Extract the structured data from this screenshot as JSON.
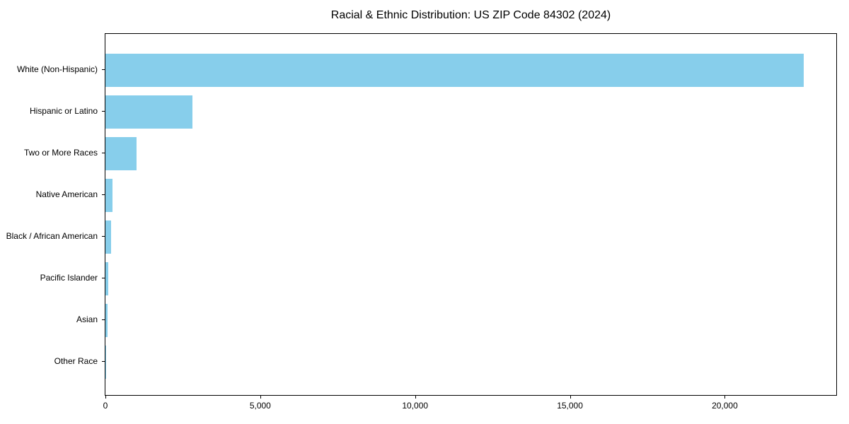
{
  "chart_data": {
    "type": "bar",
    "orientation": "horizontal",
    "title": "Racial & Ethnic Distribution: US ZIP Code 84302 (2024)",
    "categories": [
      "White (Non-Hispanic)",
      "Hispanic or Latino",
      "Two or More Races",
      "Native American",
      "Black / African American",
      "Pacific Islander",
      "Asian",
      "Other Race"
    ],
    "values": [
      22550,
      2800,
      1010,
      220,
      175,
      100,
      75,
      25
    ],
    "xlabel": "",
    "ylabel": "",
    "xlim": [
      0,
      23600
    ],
    "x_ticks": [
      0,
      5000,
      10000,
      15000,
      20000
    ],
    "x_tick_labels": [
      "0",
      "5,000",
      "10,000",
      "15,000",
      "20,000"
    ],
    "bar_color": "#87CEEB",
    "background_color": "#ffffff",
    "spine_color": "#000000",
    "grid": false,
    "legend": null
  }
}
